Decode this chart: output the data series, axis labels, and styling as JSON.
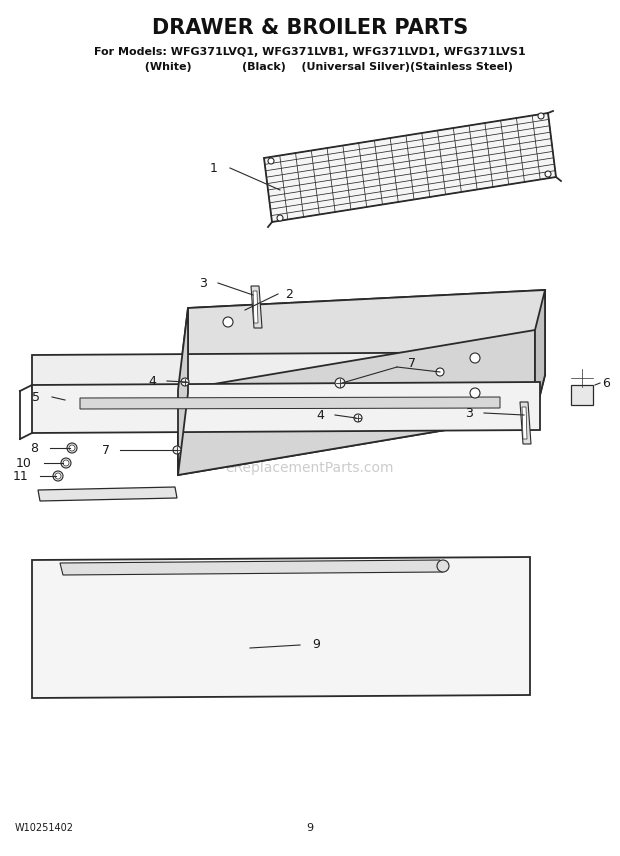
{
  "title": "DRAWER & BROILER PARTS",
  "subtitle_line1": "For Models: WFG371LVQ1, WFG371LVB1, WFG371LVD1, WFG371LVS1",
  "subtitle_line2": "          (White)             (Black)    (Universal Silver)(Stainless Steel)",
  "footer_left": "W10251402",
  "footer_center": "9",
  "background_color": "#ffffff",
  "line_color": "#2a2a2a",
  "label_color": "#1a1a1a",
  "watermark_color": "#cccccc",
  "watermark_text": "eReplacementParts.com",
  "figsize": [
    6.2,
    8.56
  ],
  "dpi": 100
}
